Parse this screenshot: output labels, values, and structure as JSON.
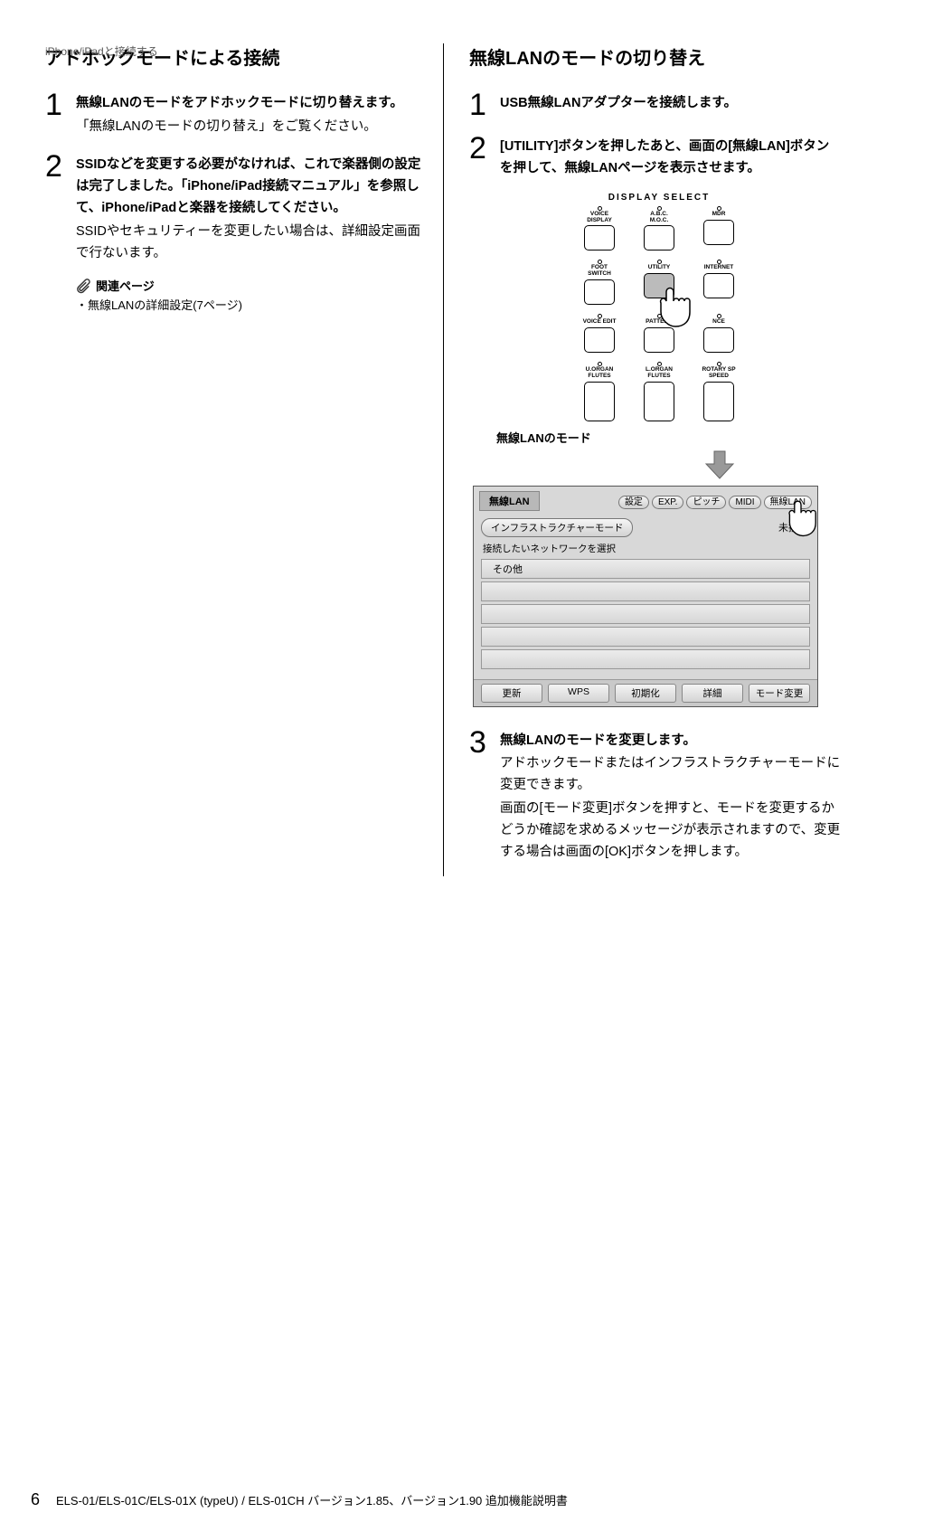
{
  "running_head": "iPhone/iPadと接続する",
  "left": {
    "title": "アドホックモードによる接続",
    "steps": [
      {
        "num": "1",
        "main": "無線LANのモードをアドホックモードに切り替えます。",
        "note": "「無線LANのモードの切り替え」をご覧ください。"
      },
      {
        "num": "2",
        "main": "SSIDなどを変更する必要がなければ、これで楽器側の設定は完了しました。「iPhone/iPad接続マニュアル」を参照して、iPhone/iPadと楽器を接続してください。",
        "note": "SSIDやセキュリティーを変更したい場合は、詳細設定画面で行ないます。"
      }
    ],
    "related_label": "関連ページ",
    "related_item": "・無線LANの詳細設定(7ページ)"
  },
  "right": {
    "title": "無線LANのモードの切り替え",
    "steps": [
      {
        "num": "1",
        "main": "USB無線LANアダプターを接続します。"
      },
      {
        "num": "2",
        "main": "[UTILITY]ボタンを押したあと、画面の[無線LAN]ボタンを押して、無線LANページを表示させます。"
      },
      {
        "num": "3",
        "main": "無線LANのモードを変更します。",
        "notes": [
          "アドホックモードまたはインフラストラクチャーモードに変更できます。",
          "画面の[モード変更]ボタンを押すと、モードを変更するかどうか確認を求めるメッセージが表示されますので、変更する場合は画面の[OK]ボタンを押します。"
        ]
      }
    ],
    "panel": {
      "caption": "DISPLAY  SELECT",
      "rows": [
        [
          {
            "label": "VOICE\nDISPLAY"
          },
          {
            "label": "A.B.C.\nM.O.C."
          },
          {
            "label": "MDR"
          }
        ],
        [
          {
            "label": "FOOT\nSWITCH"
          },
          {
            "label": "UTILITY",
            "pressed": true
          },
          {
            "label": "INTERNET"
          }
        ],
        [
          {
            "label": "VOICE EDIT"
          },
          {
            "label": "PATTERN",
            "partial": true
          },
          {
            "label": "NCE",
            "partial": true
          }
        ],
        [
          {
            "label": "U.ORGAN\nFLUTES",
            "tall": true
          },
          {
            "label": "L.ORGAN\nFLUTES",
            "tall": true
          },
          {
            "label": "ROTARY SP\nSPEED",
            "tall": true
          }
        ]
      ]
    },
    "mode_caption": "無線LANのモード",
    "lcd": {
      "title": "無線LAN",
      "tabs": [
        "設定",
        "EXP.",
        "ピッチ",
        "MIDI",
        "無線LAN"
      ],
      "active_tab": 4,
      "mode_pill": "インフラストラクチャーモード",
      "unconnected": "未接続",
      "prompt": "接続したいネットワークを選択",
      "rows": [
        "その他",
        "",
        "",
        "",
        ""
      ],
      "bottom": [
        "更新",
        "WPS",
        "初期化",
        "詳細",
        "モード変更"
      ]
    }
  },
  "footer": {
    "page": "6",
    "text": "ELS-01/ELS-01C/ELS-01X (typeU) / ELS-01CH バージョン1.85、バージョン1.90 追加機能説明書"
  }
}
